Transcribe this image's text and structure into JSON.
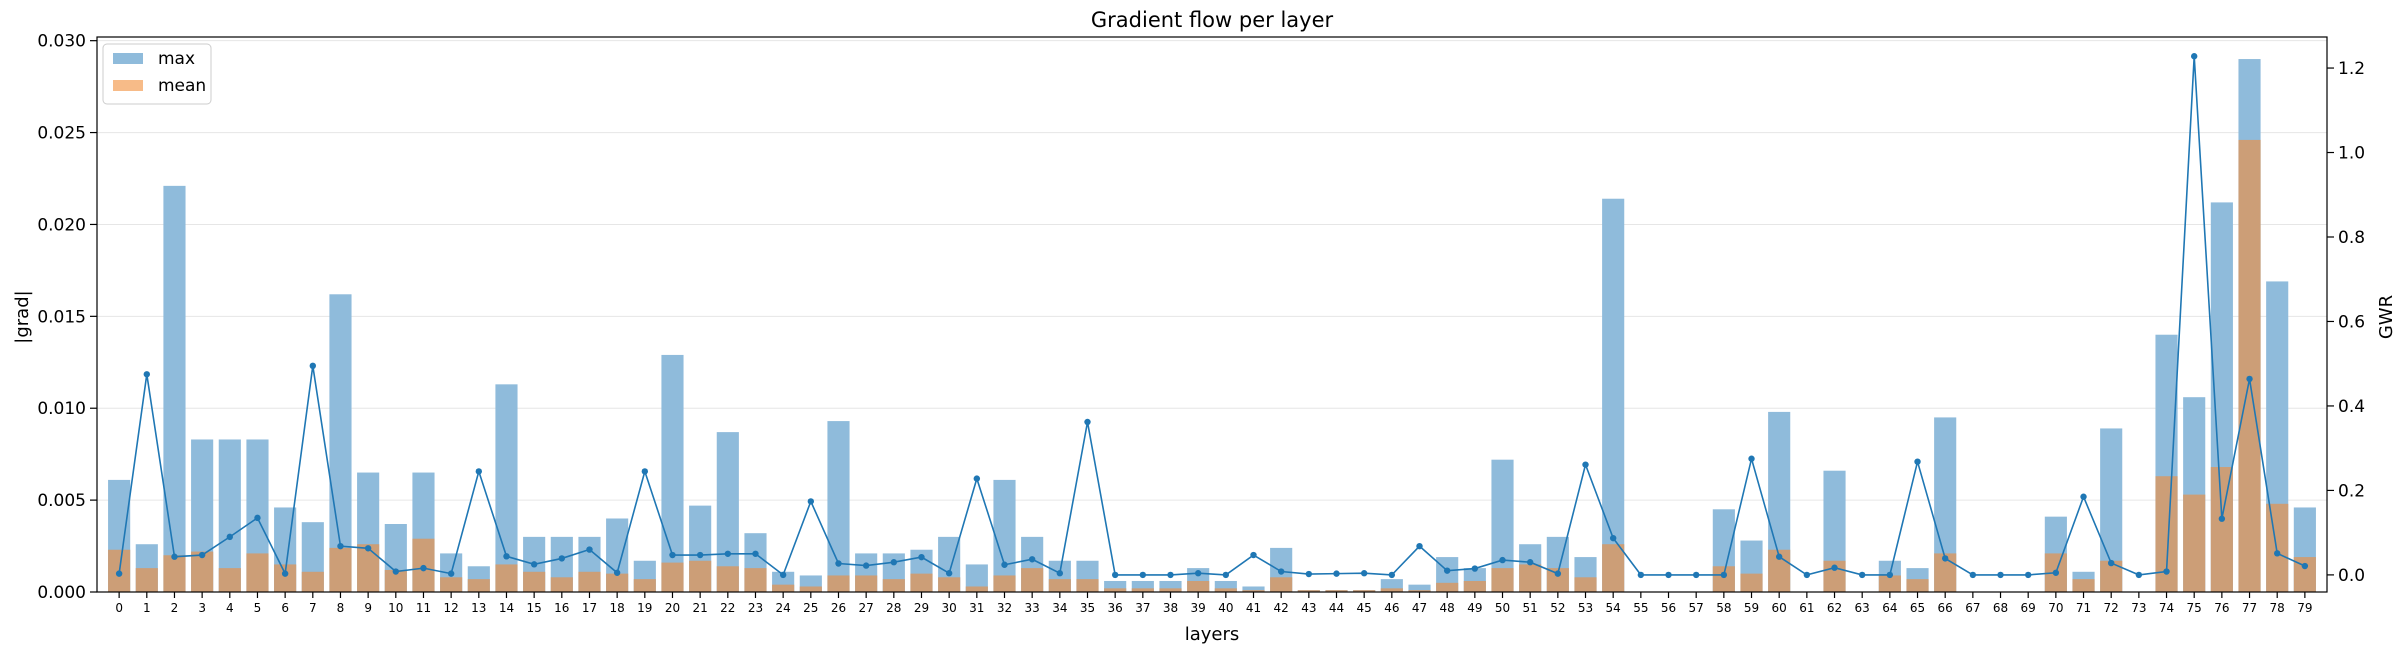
{
  "chart_data": {
    "type": "bar",
    "title": "Gradient flow per layer",
    "xlabel": "layers",
    "ylabel": "|grad|",
    "y2label": "GWR",
    "ylim": [
      0,
      0.0302
    ],
    "y2lim": [
      -0.0405,
      1.2735
    ],
    "yticks": [
      "0.000",
      "0.005",
      "0.010",
      "0.015",
      "0.020",
      "0.025",
      "0.030"
    ],
    "y2ticks": [
      "0.0",
      "0.2",
      "0.4",
      "0.6",
      "0.8",
      "1.0",
      "1.2"
    ],
    "grid": "horizontal",
    "legend": {
      "placement": "top-left"
    },
    "colors": {
      "max": "#8fbbdb",
      "mean": "#f7bb88",
      "overlap": "#cc9e77",
      "gwr": "#1f77b4"
    },
    "categories": [
      "0",
      "1",
      "2",
      "3",
      "4",
      "5",
      "6",
      "7",
      "8",
      "9",
      "10",
      "11",
      "12",
      "13",
      "14",
      "15",
      "16",
      "17",
      "18",
      "19",
      "20",
      "21",
      "22",
      "23",
      "24",
      "25",
      "26",
      "27",
      "28",
      "29",
      "30",
      "31",
      "32",
      "33",
      "34",
      "35",
      "36",
      "37",
      "38",
      "39",
      "40",
      "41",
      "42",
      "43",
      "44",
      "45",
      "46",
      "47",
      "48",
      "49",
      "50",
      "51",
      "52",
      "53",
      "54",
      "55",
      "56",
      "57",
      "58",
      "59",
      "60",
      "61",
      "62",
      "63",
      "64",
      "65",
      "66",
      "67",
      "68",
      "69",
      "70",
      "71",
      "72",
      "73",
      "74",
      "75",
      "76",
      "77",
      "78",
      "79"
    ],
    "series": [
      {
        "name": "max",
        "kind": "bar",
        "values": [
          0.0061,
          0.0026,
          0.0221,
          0.0083,
          0.0083,
          0.0083,
          0.0046,
          0.0038,
          0.0162,
          0.0065,
          0.0037,
          0.0065,
          0.0021,
          0.0014,
          0.0113,
          0.003,
          0.003,
          0.003,
          0.004,
          0.0017,
          0.0129,
          0.0047,
          0.0087,
          0.0032,
          0.0011,
          0.0009,
          0.0093,
          0.0021,
          0.0021,
          0.0023,
          0.003,
          0.0015,
          0.0061,
          0.003,
          0.0017,
          0.0017,
          0.0006,
          0.0006,
          0.0006,
          0.0013,
          0.0006,
          0.0003,
          0.0024,
          0.0001,
          0.0001,
          0.0001,
          0.0007,
          0.0004,
          0.0019,
          0.0013,
          0.0072,
          0.0026,
          0.003,
          0.0019,
          0.0214,
          0.0,
          0.0,
          0.0,
          0.0045,
          0.0028,
          0.0098,
          0.0,
          0.0066,
          0.0,
          0.0017,
          0.0013,
          0.0095,
          0.0,
          0.0,
          0.0,
          0.0041,
          0.0011,
          0.0089,
          0.0,
          0.014,
          0.0106,
          0.0212,
          0.029,
          0.0169,
          0.0046
        ]
      },
      {
        "name": "mean",
        "kind": "bar",
        "values": [
          0.0023,
          0.0013,
          0.002,
          0.0022,
          0.0013,
          0.0021,
          0.0015,
          0.0011,
          0.0024,
          0.0026,
          0.0012,
          0.0029,
          0.0008,
          0.0007,
          0.0015,
          0.0011,
          0.0008,
          0.0011,
          0.001,
          0.0007,
          0.0016,
          0.0017,
          0.0014,
          0.0013,
          0.0004,
          0.0003,
          0.0009,
          0.0009,
          0.0007,
          0.001,
          0.0008,
          0.0003,
          0.0009,
          0.0013,
          0.0007,
          0.0007,
          0.0002,
          0.0002,
          0.0002,
          0.0006,
          0.0002,
          0.0001,
          0.0008,
          0.0001,
          0.0001,
          0.0001,
          0.0002,
          0.0001,
          0.0005,
          0.0006,
          0.0013,
          0.0015,
          0.0013,
          0.0008,
          0.0026,
          0.0,
          0.0,
          0.0,
          0.0014,
          0.001,
          0.0023,
          0.0,
          0.0017,
          0.0,
          0.0009,
          0.0007,
          0.0021,
          0.0,
          0.0,
          0.0,
          0.0021,
          0.0007,
          0.0017,
          0.0,
          0.0063,
          0.0053,
          0.0068,
          0.0246,
          0.0048,
          0.0019
        ]
      },
      {
        "name": "GWR",
        "kind": "line",
        "axis": "right",
        "values": [
          0.003,
          0.475,
          0.043,
          0.047,
          0.09,
          0.135,
          0.003,
          0.495,
          0.068,
          0.063,
          0.008,
          0.016,
          0.003,
          0.245,
          0.044,
          0.025,
          0.039,
          0.06,
          0.005,
          0.245,
          0.047,
          0.047,
          0.05,
          0.05,
          0.0,
          0.174,
          0.027,
          0.022,
          0.03,
          0.042,
          0.004,
          0.228,
          0.024,
          0.037,
          0.004,
          0.362,
          0.0,
          0.0,
          0.0,
          0.004,
          0.0,
          0.047,
          0.008,
          0.002,
          0.003,
          0.004,
          0.0,
          0.068,
          0.01,
          0.015,
          0.035,
          0.03,
          0.003,
          0.261,
          0.087,
          0.0,
          0.0,
          0.0,
          0.0,
          0.275,
          0.043,
          0.0,
          0.017,
          0.0,
          0.0,
          0.268,
          0.039,
          0.0,
          0.0,
          0.0,
          0.005,
          0.185,
          0.028,
          0.0,
          0.008,
          1.228,
          0.133,
          0.464,
          0.051,
          0.021
        ]
      }
    ]
  }
}
